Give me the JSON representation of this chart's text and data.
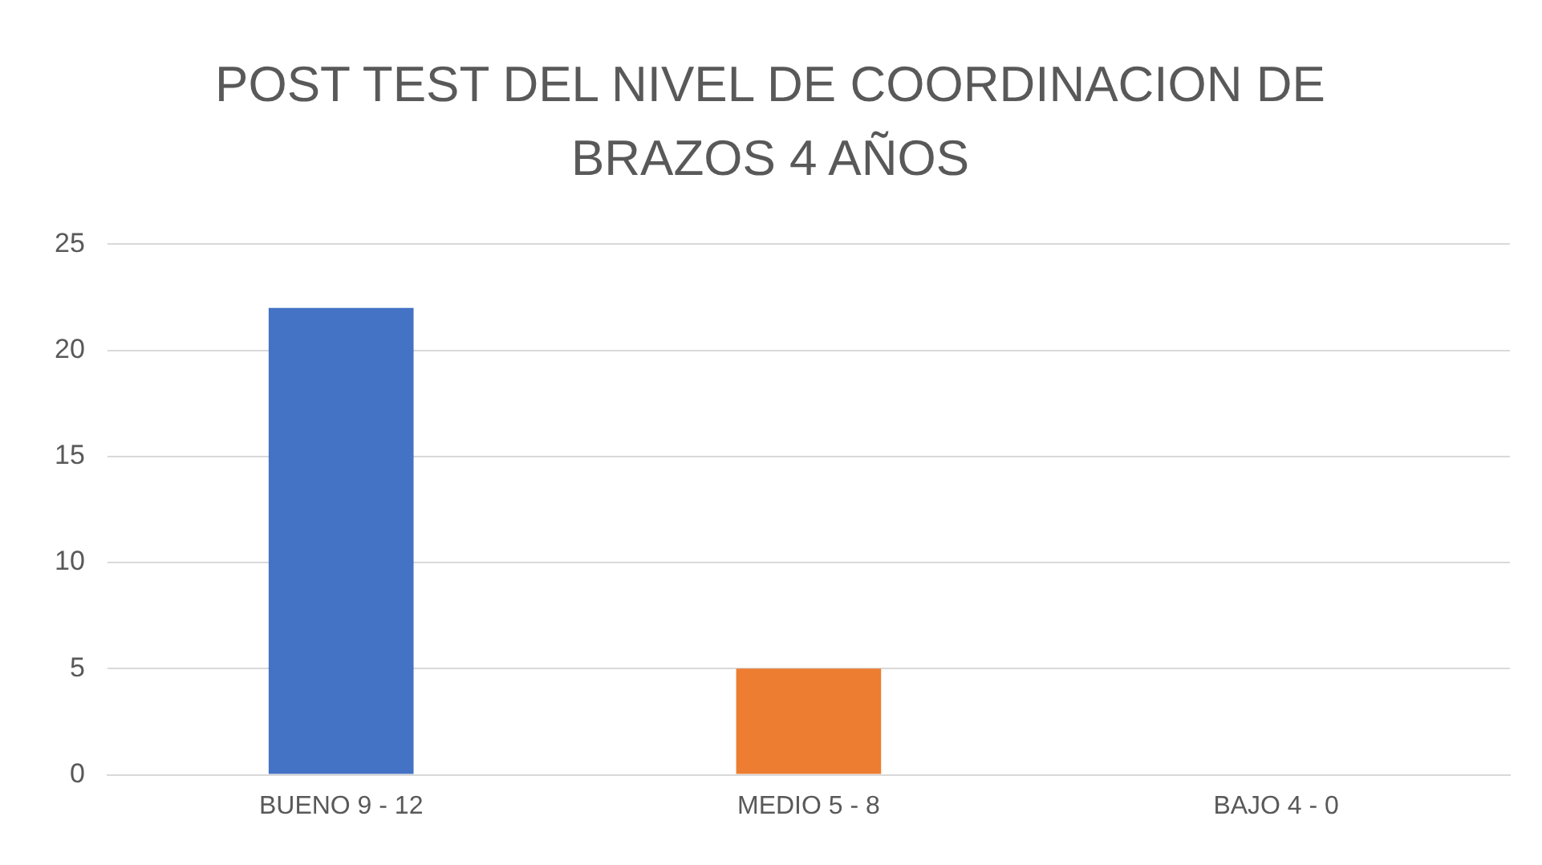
{
  "chart_data": {
    "type": "bar",
    "title": "POST TEST DEL NIVEL DE COORDINACION DE BRAZOS 4 AÑOS",
    "categories": [
      "BUENO 9 - 12",
      "MEDIO 5 - 8",
      "BAJO 4 - 0"
    ],
    "values": [
      22,
      5,
      0
    ],
    "colors": [
      "#4472c4",
      "#ed7d31",
      "#a5a5a5"
    ],
    "ylim": [
      0,
      25
    ],
    "yticks": [
      0,
      5,
      10,
      15,
      20,
      25
    ],
    "grid": "y",
    "legend": false
  }
}
